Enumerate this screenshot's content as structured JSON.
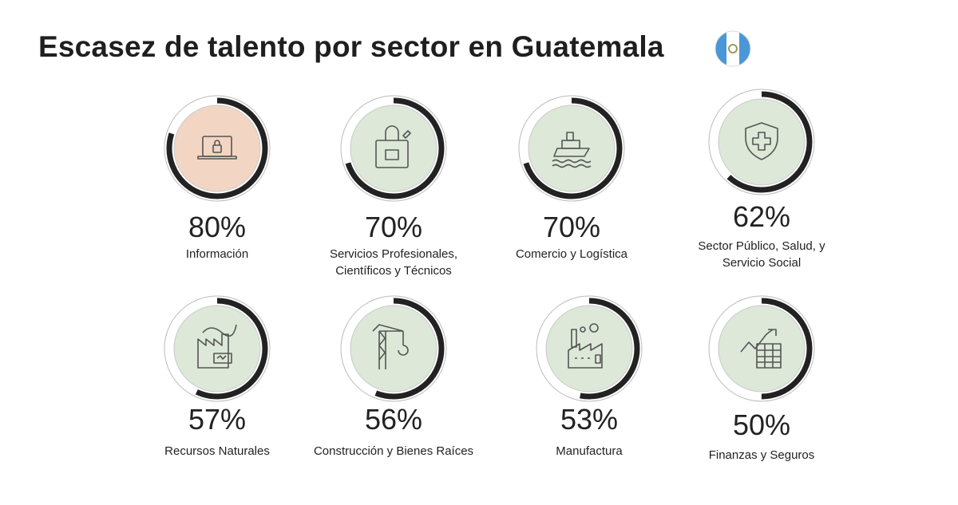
{
  "title": "Escasez de talento por sector en Guatemala",
  "flag_icon": "guatemala-flag-icon",
  "colors": {
    "ring": "#222222",
    "ring_track": "#ffffff",
    "fill_green": "#dde8d8",
    "fill_peach": "#f2d5c2",
    "icon": "#555555"
  },
  "chart_data": {
    "type": "donut-grid",
    "title": "Escasez de talento por sector en Guatemala",
    "unit": "%",
    "items": [
      {
        "label": "Información",
        "value": 80,
        "pct_text": "80%",
        "icon": "laptop-lock-icon",
        "fill": "#f2d5c2"
      },
      {
        "label": "Servicios Profesionales, Científicos y Técnicos",
        "value": 70,
        "pct_text": "70%",
        "icon": "briefcase-lock-icon",
        "fill": "#dde8d8"
      },
      {
        "label": "Comercio y Logística",
        "value": 70,
        "pct_text": "70%",
        "icon": "ship-icon",
        "fill": "#dde8d8"
      },
      {
        "label": "Sector Público, Salud, y Servicio Social",
        "value": 62,
        "pct_text": "62%",
        "icon": "shield-cross-icon",
        "fill": "#dde8d8"
      },
      {
        "label": "Recursos Naturales",
        "value": 57,
        "pct_text": "57%",
        "icon": "factory-battery-icon",
        "fill": "#dde8d8"
      },
      {
        "label": "Construcción y Bienes Raíces",
        "value": 56,
        "pct_text": "56%",
        "icon": "crane-icon",
        "fill": "#dde8d8"
      },
      {
        "label": "Manufactura",
        "value": 53,
        "pct_text": "53%",
        "icon": "factory-icon",
        "fill": "#dde8d8"
      },
      {
        "label": "Finanzas y Seguros",
        "value": 50,
        "pct_text": "50%",
        "icon": "chart-table-icon",
        "fill": "#dde8d8"
      }
    ]
  }
}
